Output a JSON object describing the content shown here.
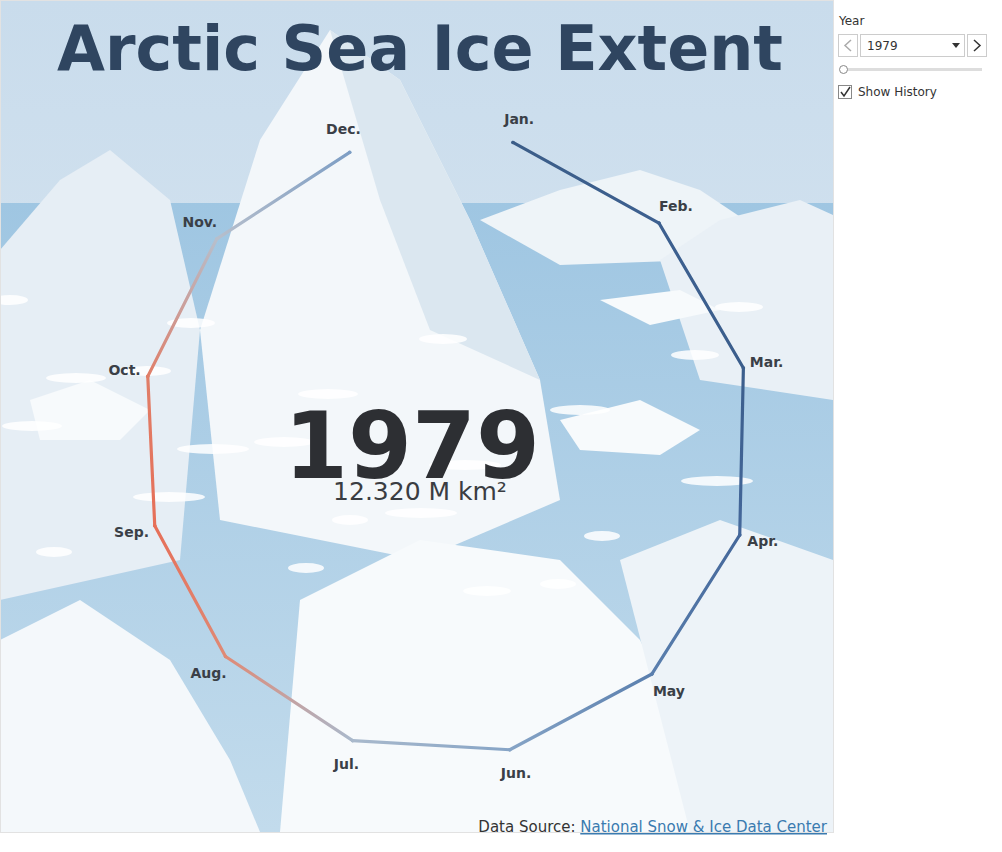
{
  "chart_data": {
    "type": "radial_line",
    "title": "Arctic Sea Ice Extent",
    "categories": [
      "Jan.",
      "Feb.",
      "Mar.",
      "Apr.",
      "May",
      "Jun.",
      "Jul.",
      "Aug.",
      "Sep.",
      "Oct.",
      "Nov.",
      "Dec."
    ],
    "values": [
      15.41,
      16.18,
      16.34,
      15.45,
      13.86,
      12.53,
      10.31,
      8.04,
      7.05,
      8.75,
      10.94,
      13.0
    ],
    "colors": [
      "#3b5d88",
      "#3d6090",
      "#3b5e8c",
      "#44679a",
      "#5a7fae",
      "#86a4c6",
      "#a9b9cc",
      "#df8a76",
      "#e66f58",
      "#e07e68",
      "#b7bfcc",
      "#7d9ec4"
    ],
    "ylim": [
      -60,
      20
    ],
    "year": "1979",
    "annual_extent_label": "12.320 M km²",
    "source_prefix": "Data Source:",
    "source_name": "National Snow & Ice Data Center"
  },
  "controls": {
    "label": "Year",
    "selected": "1979",
    "checkbox_label": "Show History",
    "checked": true
  }
}
